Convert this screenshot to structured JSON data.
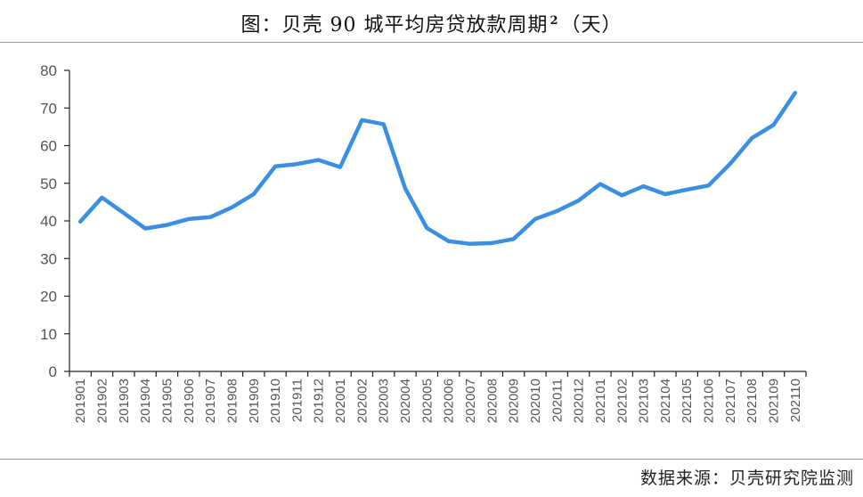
{
  "header": {
    "title_main": "图：贝壳 90 城平均房贷放款周期",
    "title_sup": "2",
    "title_unit": "（天）"
  },
  "footer": {
    "source": "数据来源：贝壳研究院监测"
  },
  "chart_data": {
    "type": "line",
    "title": "图：贝壳 90 城平均房贷放款周期 2（天）",
    "xlabel": "",
    "ylabel": "",
    "ylim": [
      0,
      80
    ],
    "yticks": [
      0,
      10,
      20,
      30,
      40,
      50,
      60,
      70,
      80
    ],
    "grid": false,
    "legend": "none",
    "color": "#3a8fe3",
    "x": [
      "201901",
      "201902",
      "201903",
      "201904",
      "201905",
      "201906",
      "201907",
      "201908",
      "201909",
      "201910",
      "201911",
      "201912",
      "202001",
      "202002",
      "202003",
      "202004",
      "202005",
      "202006",
      "202007",
      "202008",
      "202009",
      "202010",
      "202011",
      "202012",
      "202101",
      "202102",
      "202103",
      "202104",
      "202105",
      "202106",
      "202107",
      "202108",
      "202109",
      "202110"
    ],
    "series": [
      {
        "values": [
          39.8,
          46.2,
          42.1,
          38.0,
          38.9,
          40.5,
          41.0,
          43.6,
          47.1,
          54.5,
          55.1,
          56.2,
          54.3,
          66.8,
          65.7,
          48.6,
          38.1,
          34.6,
          33.9,
          34.1,
          35.2,
          40.5,
          42.6,
          45.4,
          49.8,
          46.8,
          49.2,
          47.1,
          48.3,
          49.4,
          55.2,
          62.0,
          65.5,
          74.0
        ]
      }
    ]
  }
}
